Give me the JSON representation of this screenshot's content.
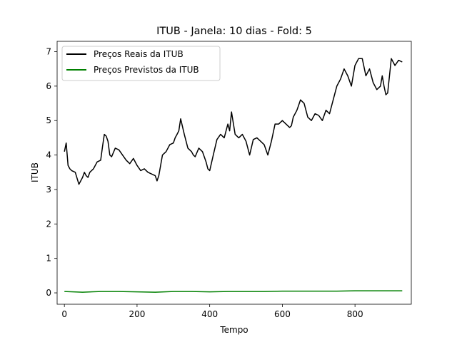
{
  "chart_data": {
    "type": "line",
    "title": "ITUB - Janela: 10 dias - Fold: 5",
    "xlabel": "Tempo",
    "ylabel": "ITUB",
    "xlim": [
      -20,
      955
    ],
    "ylim": [
      -0.33,
      7.3
    ],
    "x_ticks": [
      0,
      200,
      400,
      600,
      800
    ],
    "y_ticks": [
      0,
      1,
      2,
      3,
      4,
      5,
      6,
      7
    ],
    "grid": false,
    "legend_position": "upper-left",
    "series": [
      {
        "name": "Preços Reais da ITUB",
        "color": "#000000",
        "x": [
          0,
          5,
          10,
          15,
          20,
          30,
          40,
          50,
          55,
          60,
          65,
          70,
          80,
          90,
          100,
          105,
          110,
          115,
          120,
          125,
          130,
          140,
          150,
          160,
          170,
          180,
          190,
          200,
          210,
          220,
          230,
          240,
          250,
          255,
          260,
          270,
          280,
          290,
          300,
          305,
          310,
          315,
          320,
          330,
          340,
          350,
          355,
          360,
          370,
          380,
          390,
          395,
          400,
          410,
          420,
          430,
          440,
          450,
          455,
          460,
          470,
          480,
          490,
          500,
          510,
          520,
          530,
          540,
          550,
          560,
          570,
          580,
          590,
          600,
          610,
          620,
          625,
          630,
          640,
          650,
          660,
          670,
          680,
          690,
          700,
          710,
          720,
          730,
          740,
          750,
          760,
          770,
          780,
          790,
          800,
          810,
          820,
          830,
          840,
          850,
          860,
          870,
          875,
          880,
          885,
          890,
          900,
          910,
          920,
          930
        ],
        "y": [
          4.1,
          4.35,
          3.7,
          3.6,
          3.55,
          3.5,
          3.15,
          3.35,
          3.5,
          3.4,
          3.35,
          3.5,
          3.6,
          3.8,
          3.85,
          4.25,
          4.6,
          4.55,
          4.4,
          4.0,
          3.95,
          4.2,
          4.15,
          4.0,
          3.85,
          3.75,
          3.9,
          3.7,
          3.55,
          3.6,
          3.5,
          3.45,
          3.4,
          3.25,
          3.4,
          4.0,
          4.1,
          4.3,
          4.35,
          4.5,
          4.6,
          4.7,
          5.05,
          4.6,
          4.2,
          4.1,
          4.0,
          3.95,
          4.2,
          4.1,
          3.8,
          3.6,
          3.55,
          4.0,
          4.45,
          4.6,
          4.5,
          4.9,
          4.7,
          5.25,
          4.6,
          4.5,
          4.6,
          4.4,
          4.0,
          4.45,
          4.5,
          4.4,
          4.3,
          4.0,
          4.4,
          4.9,
          4.9,
          5.0,
          4.9,
          4.8,
          4.85,
          5.1,
          5.3,
          5.6,
          5.5,
          5.1,
          5.0,
          5.2,
          5.15,
          5.0,
          5.3,
          5.2,
          5.6,
          6.0,
          6.2,
          6.5,
          6.3,
          6.0,
          6.6,
          6.8,
          6.8,
          6.3,
          6.5,
          6.1,
          5.9,
          6.0,
          6.3,
          6.0,
          5.75,
          5.8,
          6.8,
          6.6,
          6.75,
          6.7
        ],
        "ylim": null
      },
      {
        "name": "Preços Previstos da ITUB",
        "color": "#008000",
        "x": [
          0,
          50,
          100,
          150,
          200,
          250,
          300,
          350,
          400,
          450,
          500,
          550,
          600,
          650,
          700,
          750,
          800,
          850,
          900,
          930
        ],
        "y": [
          0.04,
          0.02,
          0.04,
          0.04,
          0.03,
          0.02,
          0.04,
          0.04,
          0.03,
          0.04,
          0.04,
          0.04,
          0.05,
          0.05,
          0.05,
          0.05,
          0.06,
          0.06,
          0.06,
          0.06
        ]
      }
    ]
  }
}
